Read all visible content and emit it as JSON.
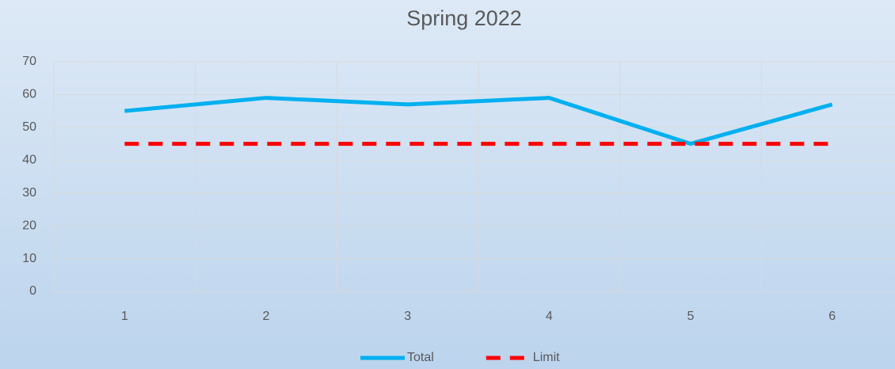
{
  "chart_data": {
    "type": "line",
    "title": "Spring 2022",
    "categories": [
      "1",
      "2",
      "3",
      "4",
      "5",
      "6"
    ],
    "series": [
      {
        "name": "Total",
        "color": "#00b0f0",
        "dashed": false,
        "values": [
          55,
          59,
          57,
          59,
          45,
          57
        ]
      },
      {
        "name": "Limit",
        "color": "#ff0000",
        "dashed": true,
        "values": [
          45,
          45,
          45,
          45,
          45,
          45
        ]
      }
    ],
    "ylim": [
      0,
      70
    ],
    "yticks": [
      0,
      10,
      20,
      30,
      40,
      50,
      60,
      70
    ],
    "grid": true,
    "legend": "bottom"
  }
}
